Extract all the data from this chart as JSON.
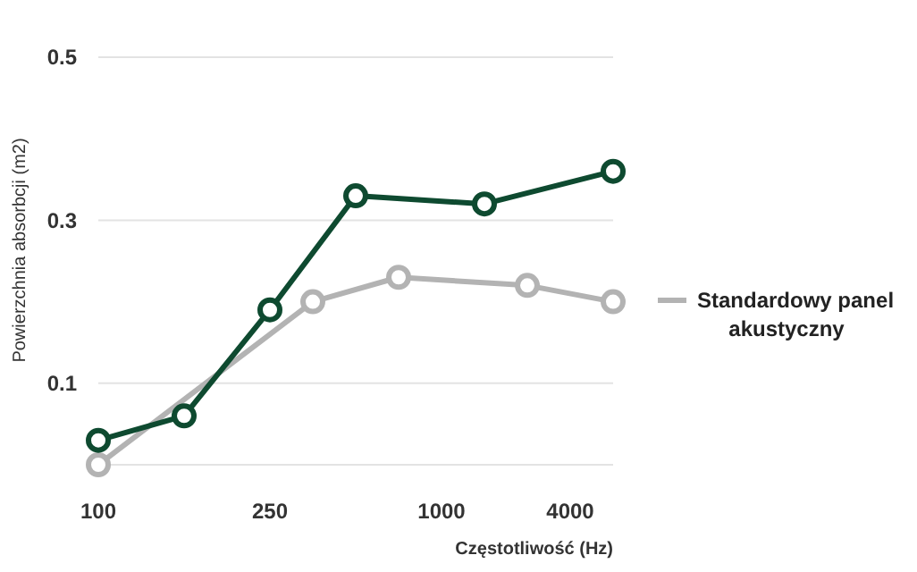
{
  "chart_data": {
    "type": "line",
    "xlabel": "Częstotliwość (Hz)",
    "ylabel": "Powierzchnia absorbcji (m2)",
    "categories": [
      "100",
      null,
      null,
      null,
      "250",
      null,
      null,
      null,
      "1000",
      null,
      null,
      "4000",
      null
    ],
    "ylim": [
      0,
      0.5
    ],
    "yticks": [
      0.1,
      0.3,
      0.5
    ],
    "grid": "y",
    "marker": "circle",
    "line_style": "solid",
    "legend": "right",
    "series": [
      {
        "color": "#b3b3b3",
        "values": [
          0,
          null,
          null,
          null,
          null,
          0.2,
          null,
          0.23,
          null,
          null,
          0.22,
          null,
          0.2
        ],
        "name": "Standardowy panel akustyczny"
      },
      {
        "color": "#0e4a30",
        "values": [
          0.03,
          null,
          0.06,
          null,
          0.19,
          null,
          0.33,
          null,
          null,
          0.32,
          null,
          null,
          0.36
        ]
      }
    ]
  }
}
